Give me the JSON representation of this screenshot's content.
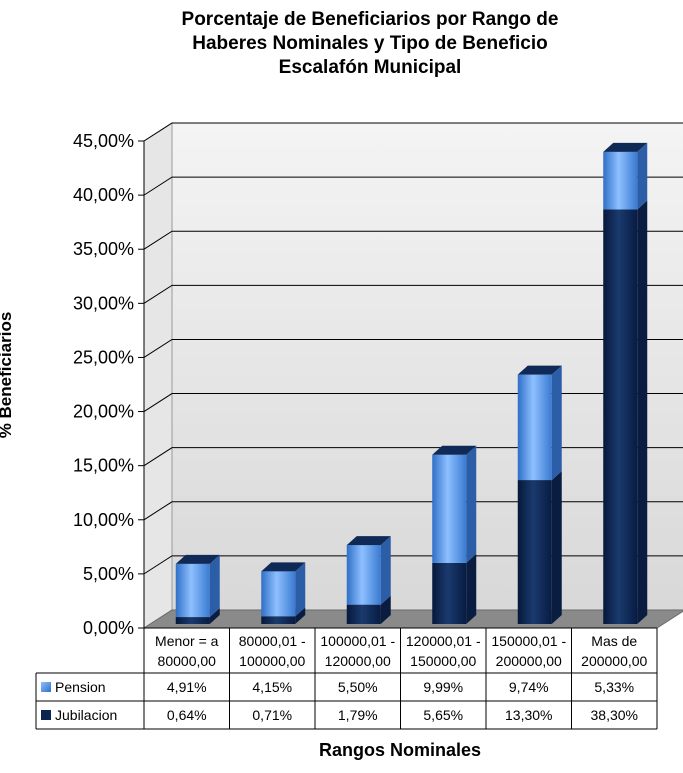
{
  "chart_data": {
    "type": "bar",
    "stacked": true,
    "title": [
      "Porcentaje de Beneficiarios por Rango de",
      "Haberes Nominales y Tipo de Beneficio",
      "Escalafón Municipal"
    ],
    "xlabel": "Rangos Nominales",
    "ylabel": "% Beneficiarios",
    "ylim": [
      0,
      45
    ],
    "yticks": [
      "0,00%",
      "5,00%",
      "10,00%",
      "15,00%",
      "20,00%",
      "25,00%",
      "30,00%",
      "35,00%",
      "40,00%",
      "45,00%"
    ],
    "categories": [
      [
        "Menor = a",
        "80000,00"
      ],
      [
        "80000,01 -",
        "100000,00"
      ],
      [
        "100000,01 -",
        "120000,00"
      ],
      [
        "120000,01 -",
        "150000,00"
      ],
      [
        "150000,01 -",
        "200000,00"
      ],
      [
        "Mas de",
        "200000,00"
      ]
    ],
    "series": [
      {
        "name": "Pension",
        "values": [
          4.91,
          4.15,
          5.5,
          9.99,
          9.74,
          5.33
        ],
        "labels": [
          "4,91%",
          "4,15%",
          "5,50%",
          "9,99%",
          "9,74%",
          "5,33%"
        ],
        "color": "#4f8fdc"
      },
      {
        "name": "Jubilacion",
        "values": [
          0.64,
          0.71,
          1.79,
          5.65,
          13.3,
          38.3
        ],
        "labels": [
          "0,64%",
          "0,71%",
          "1,79%",
          "5,65%",
          "13,30%",
          "38,30%"
        ],
        "color": "#0b2550"
      }
    ],
    "grid": true,
    "legend": "data-table"
  }
}
